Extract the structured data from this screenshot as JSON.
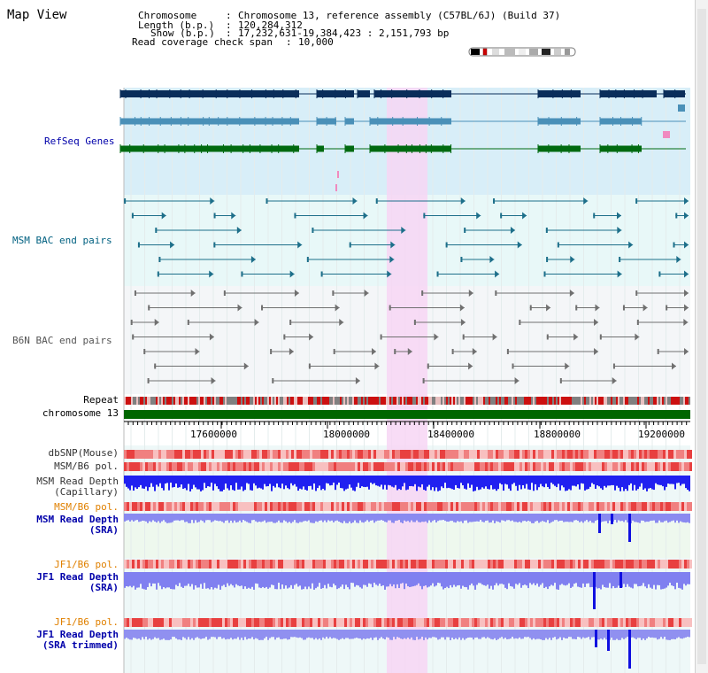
{
  "title": "Map View",
  "info": {
    "chromosome_key": "Chromosome",
    "chromosome_val": "Chromosome 13, reference assembly (C57BL/6J) (Build 37)",
    "length_key": "Length (b.p.)",
    "length_val": "120,284,312",
    "show_key": "Show (b.p.)",
    "show_val": "17,232,631-19,384,423 : 2,151,793 bp",
    "coverage_key": "Read coverage check span",
    "coverage_val": "10,000",
    "sep": ":"
  },
  "tracks": {
    "refseq": "RefSeq Genes",
    "msm_bac": "MSM BAC end pairs",
    "b6n_bac": "B6N BAC end pairs",
    "repeat": "Repeat",
    "chromosome": "chromosome 13",
    "dbsnp": "dbSNP(Mouse)",
    "msm_b6_pol": "MSM/B6 pol.",
    "msm_depth_cap_1": "MSM Read Depth",
    "msm_depth_cap_2": "(Capillary)",
    "msm_b6_pol2": "MSM/B6 pol.",
    "msm_depth_sra_1": "MSM Read Depth",
    "msm_depth_sra_2": "(SRA)",
    "jf1_b6_pol": "JF1/B6 pol.",
    "jf1_depth_sra_1": "JF1 Read Depth",
    "jf1_depth_sra_2": "(SRA)",
    "jf1_b6_pol2": "JF1/B6 pol.",
    "jf1_depth_trim_1": "JF1 Read Depth",
    "jf1_depth_trim_2": "(SRA trimmed)"
  },
  "axis": {
    "ticks": [
      "17600000",
      "18000000",
      "18400000",
      "18800000",
      "19200000"
    ]
  },
  "colors": {
    "refseq_label": "#0000aa",
    "msm_label": "#006080",
    "b6n_label": "#555555",
    "pol_label": "#e08000",
    "depth_label": "#0000aa",
    "highlight": "#f7d6f4",
    "chromosome_bar": "#006600",
    "depth_blue": "#1a1aff",
    "depth_light": "#8080f0"
  }
}
